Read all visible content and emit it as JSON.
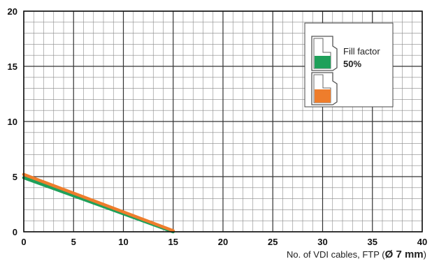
{
  "chart_data": {
    "type": "line",
    "title": "",
    "xlabel": {
      "prefix": "No. of VDI cables, FTP (",
      "bold": "Ø 7 mm",
      "suffix": ")"
    },
    "ylabel": "",
    "xlim": [
      0,
      40
    ],
    "ylim": [
      0,
      20
    ],
    "x_ticks": [
      0,
      5,
      10,
      15,
      20,
      25,
      30,
      35,
      40
    ],
    "y_ticks": [
      0,
      5,
      10,
      15,
      20
    ],
    "grid": true,
    "series": [
      {
        "color": "#1fa05a",
        "x": [
          0,
          15
        ],
        "y": [
          4.9,
          0.0
        ]
      },
      {
        "color": "#ee7d2c",
        "x": [
          0,
          15
        ],
        "y": [
          5.2,
          0.1
        ]
      }
    ],
    "legend": {
      "placement": "top-right",
      "line1": "Fill factor",
      "line2": "50%",
      "colors": [
        "#1fa05a",
        "#ee7d2c"
      ]
    }
  }
}
